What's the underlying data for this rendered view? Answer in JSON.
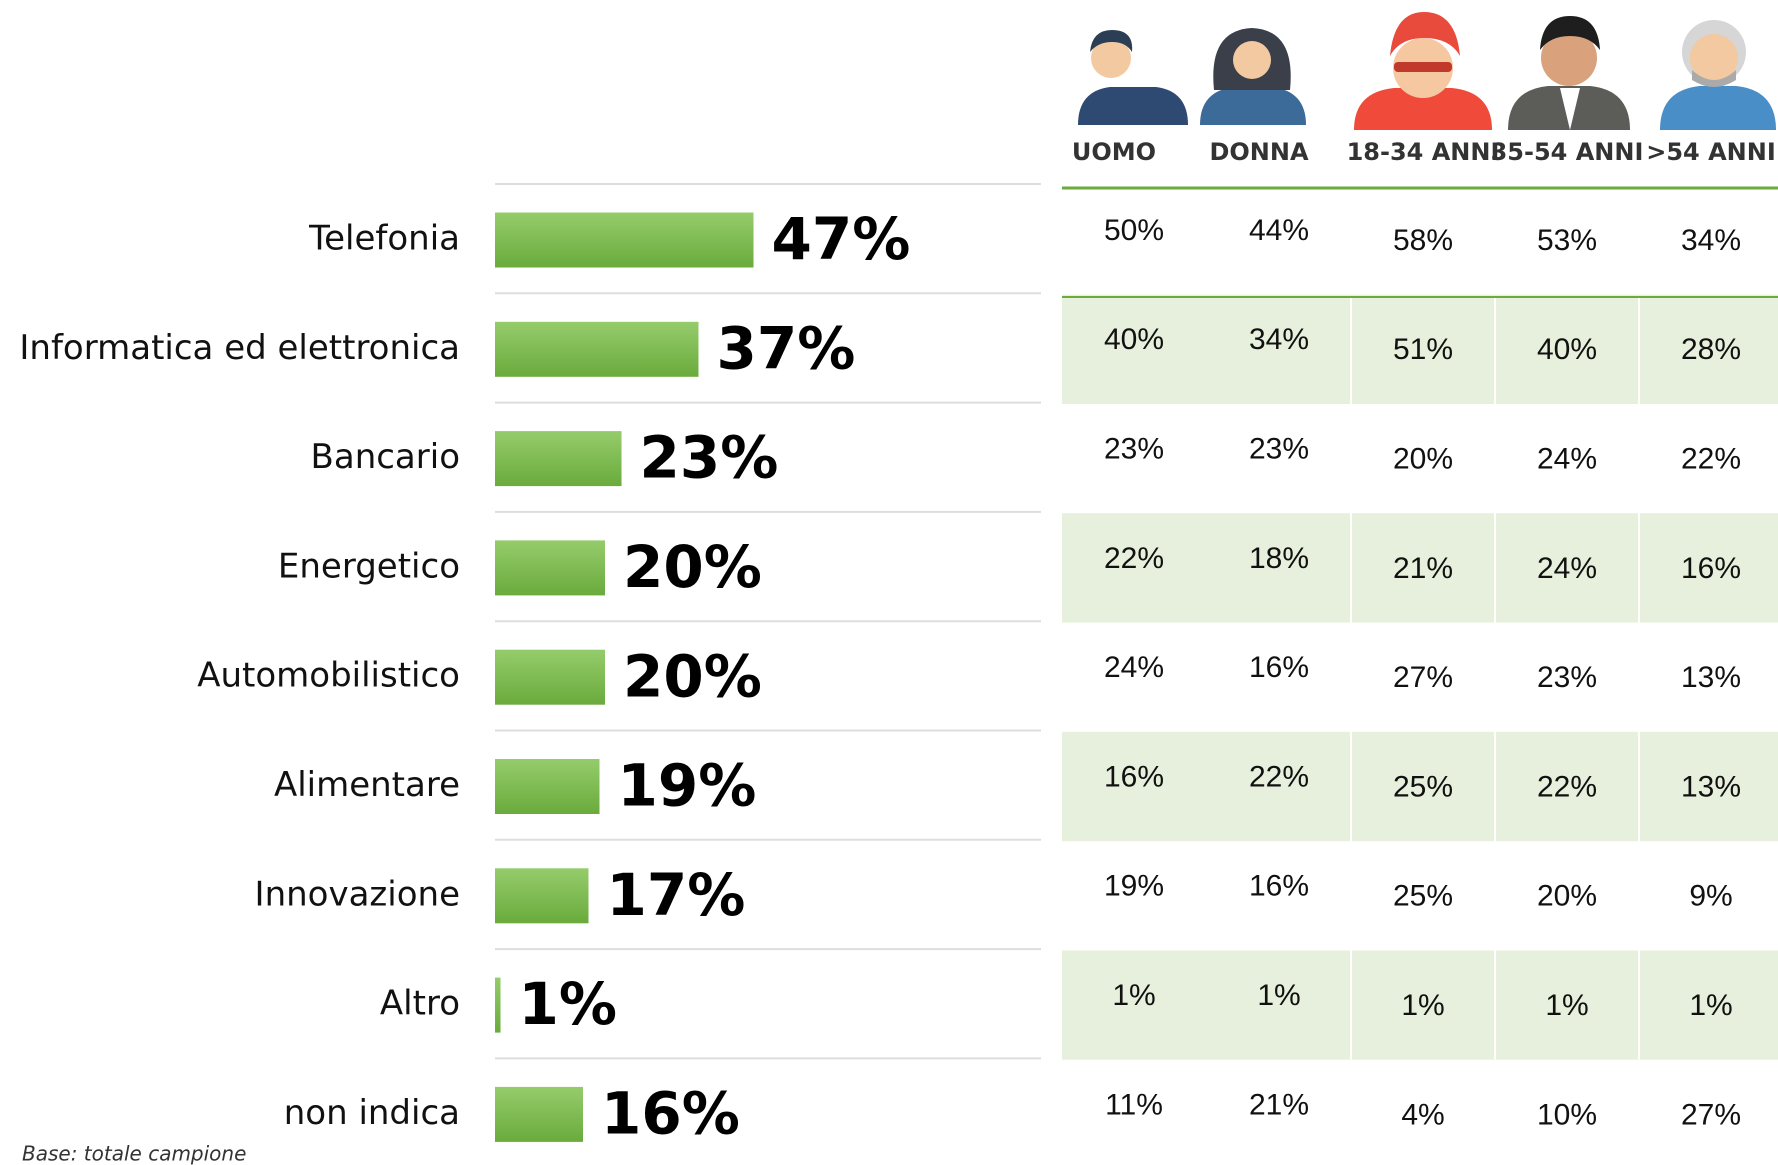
{
  "chart_data": {
    "type": "bar",
    "orientation": "horizontal",
    "categories": [
      "Telefonia",
      "Informatica ed elettronica",
      "Bancario",
      "Energetico",
      "Automobilistico",
      "Alimentare",
      "Innovazione",
      "Altro",
      "non indica"
    ],
    "values": [
      47,
      37,
      23,
      20,
      20,
      19,
      17,
      1,
      16
    ],
    "value_labels": [
      "47%",
      "37%",
      "23%",
      "20%",
      "20%",
      "19%",
      "17%",
      "1%",
      "16%"
    ],
    "color": "#7dbb4f"
  },
  "table": {
    "columns": [
      "UOMO",
      "DONNA",
      "18-34 ANNI",
      "35-54 ANNI",
      ">54 ANNI"
    ],
    "rows": [
      [
        "50%",
        "44%",
        "58%",
        "53%",
        "34%"
      ],
      [
        "40%",
        "34%",
        "51%",
        "40%",
        "28%"
      ],
      [
        "23%",
        "23%",
        "20%",
        "24%",
        "22%"
      ],
      [
        "22%",
        "18%",
        "21%",
        "24%",
        "16%"
      ],
      [
        "24%",
        "16%",
        "27%",
        "23%",
        "13%"
      ],
      [
        "16%",
        "22%",
        "25%",
        "22%",
        "13%"
      ],
      [
        "19%",
        "16%",
        "25%",
        "20%",
        "9%"
      ],
      [
        "1%",
        "1%",
        "1%",
        "1%",
        "1%"
      ],
      [
        "11%",
        "21%",
        "4%",
        "10%",
        "27%"
      ]
    ]
  },
  "footer": "Base: totale campione"
}
